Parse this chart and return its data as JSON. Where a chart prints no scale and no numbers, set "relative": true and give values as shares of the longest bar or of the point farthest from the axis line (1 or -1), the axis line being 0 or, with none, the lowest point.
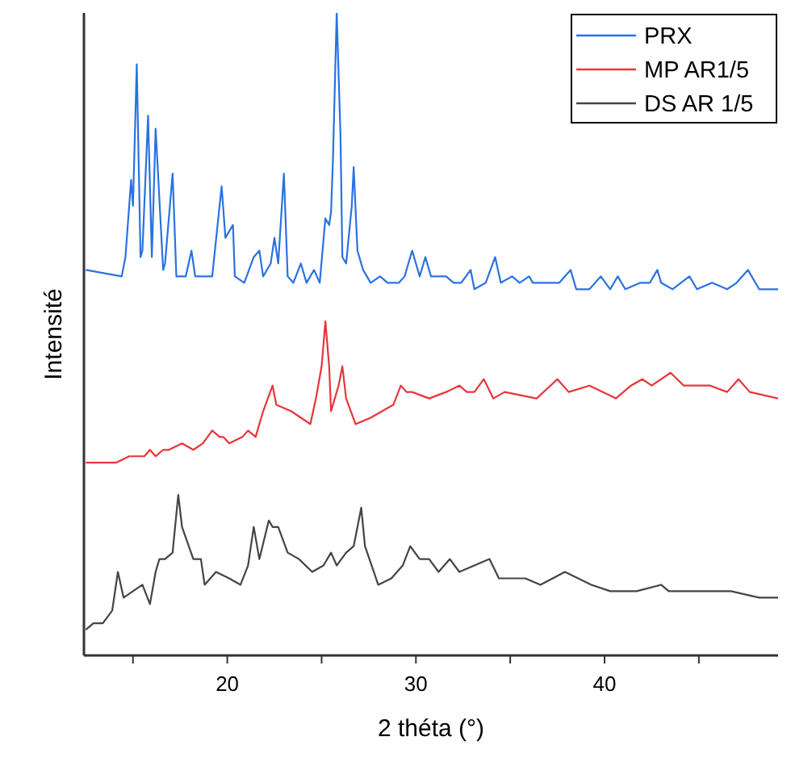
{
  "chart_data": {
    "type": "line",
    "relative": true,
    "xlabel": "2 théta (°)",
    "ylabel": "Intensité",
    "xlim": [
      12.4,
      49.2
    ],
    "xticks": [
      {
        "value": 15,
        "label": null
      },
      20,
      {
        "value": 25,
        "label": null
      },
      30,
      {
        "value": 35,
        "label": null
      },
      40,
      {
        "value": 45,
        "label": null
      }
    ],
    "grid": false,
    "legend": "top right",
    "marker": "none",
    "line_style": "solid",
    "series": [
      {
        "name": "PRX",
        "color": "#2a72e0",
        "x": [
          12.5,
          14.4,
          14.6,
          14.9,
          15.0,
          15.2,
          15.4,
          15.5,
          15.8,
          16.0,
          16.2,
          16.6,
          16.7,
          17.1,
          17.3,
          17.8,
          18.1,
          18.3,
          18.9,
          19.2,
          19.7,
          19.9,
          20.3,
          20.4,
          20.9,
          21.4,
          21.7,
          21.9,
          22.3,
          22.5,
          22.7,
          23.0,
          23.2,
          23.5,
          23.9,
          24.2,
          24.6,
          24.9,
          25.2,
          25.4,
          25.5,
          25.6,
          25.8,
          26.0,
          26.1,
          26.3,
          26.6,
          26.7,
          26.9,
          27.2,
          27.6,
          28.1,
          28.5,
          29.1,
          29.4,
          29.8,
          30.2,
          30.5,
          30.8,
          31.2,
          31.6,
          32.0,
          32.4,
          32.9,
          33.1,
          33.7,
          34.2,
          34.5,
          35.1,
          35.5,
          36.0,
          36.2,
          37.2,
          37.6,
          38.2,
          38.5,
          39.2,
          39.8,
          40.3,
          40.7,
          41.1,
          41.9,
          42.4,
          42.8,
          43.0,
          43.6,
          44.5,
          44.9,
          45.7,
          46.5,
          47.0,
          47.6,
          48.2,
          49.2
        ],
        "values": [
          0.6,
          0.59,
          0.62,
          0.74,
          0.7,
          0.92,
          0.62,
          0.63,
          0.84,
          0.62,
          0.82,
          0.6,
          0.61,
          0.75,
          0.59,
          0.59,
          0.63,
          0.59,
          0.59,
          0.59,
          0.73,
          0.65,
          0.67,
          0.59,
          0.58,
          0.62,
          0.63,
          0.59,
          0.61,
          0.65,
          0.61,
          0.75,
          0.59,
          0.58,
          0.61,
          0.58,
          0.6,
          0.58,
          0.68,
          0.67,
          0.69,
          0.77,
          1.0,
          0.81,
          0.62,
          0.61,
          0.7,
          0.76,
          0.63,
          0.6,
          0.58,
          0.59,
          0.58,
          0.58,
          0.59,
          0.63,
          0.59,
          0.62,
          0.59,
          0.59,
          0.59,
          0.58,
          0.58,
          0.6,
          0.57,
          0.58,
          0.62,
          0.58,
          0.59,
          0.58,
          0.59,
          0.58,
          0.58,
          0.58,
          0.6,
          0.57,
          0.57,
          0.59,
          0.57,
          0.59,
          0.57,
          0.58,
          0.58,
          0.6,
          0.58,
          0.57,
          0.59,
          0.57,
          0.58,
          0.57,
          0.58,
          0.6,
          0.57,
          0.57
        ]
      },
      {
        "name": "MP AR1/5",
        "color": "#e8353a",
        "x": [
          12.5,
          14.1,
          14.8,
          15.2,
          15.4,
          15.6,
          15.9,
          16.2,
          16.6,
          16.9,
          17.6,
          18.2,
          18.7,
          19.2,
          19.6,
          19.8,
          20.1,
          20.8,
          21.1,
          21.5,
          21.9,
          22.4,
          22.6,
          23.4,
          23.9,
          24.4,
          24.7,
          25.0,
          25.2,
          25.4,
          25.5,
          25.9,
          26.1,
          26.3,
          26.8,
          27.6,
          28.2,
          28.8,
          29.2,
          29.5,
          29.8,
          30.7,
          31.6,
          32.3,
          32.7,
          33.1,
          33.6,
          34.1,
          34.7,
          36.4,
          37.5,
          38.1,
          39.2,
          40.6,
          41.4,
          42.0,
          42.5,
          43.5,
          44.2,
          45.6,
          46.5,
          47.1,
          47.7,
          49.2
        ],
        "values": [
          0.3,
          0.3,
          0.31,
          0.31,
          0.31,
          0.31,
          0.32,
          0.31,
          0.32,
          0.32,
          0.33,
          0.32,
          0.33,
          0.35,
          0.34,
          0.34,
          0.33,
          0.34,
          0.35,
          0.34,
          0.38,
          0.42,
          0.39,
          0.38,
          0.37,
          0.36,
          0.4,
          0.45,
          0.52,
          0.45,
          0.38,
          0.42,
          0.45,
          0.4,
          0.36,
          0.37,
          0.38,
          0.39,
          0.42,
          0.41,
          0.41,
          0.4,
          0.41,
          0.42,
          0.41,
          0.41,
          0.43,
          0.4,
          0.41,
          0.4,
          0.43,
          0.41,
          0.42,
          0.4,
          0.42,
          0.43,
          0.42,
          0.44,
          0.42,
          0.42,
          0.41,
          0.43,
          0.41,
          0.4
        ]
      },
      {
        "name": "DS AR 1/5",
        "color": "#444444",
        "x": [
          12.5,
          12.9,
          13.4,
          13.9,
          14.2,
          14.5,
          15.0,
          15.5,
          15.9,
          16.2,
          16.4,
          16.7,
          17.1,
          17.4,
          17.6,
          18.2,
          18.6,
          18.8,
          19.4,
          20.1,
          20.7,
          21.1,
          21.4,
          21.7,
          22.2,
          22.4,
          22.7,
          23.2,
          23.8,
          24.5,
          25.1,
          25.5,
          25.8,
          26.3,
          26.7,
          27.1,
          27.3,
          28.0,
          28.7,
          29.3,
          29.7,
          30.2,
          30.7,
          31.2,
          31.8,
          32.3,
          33.9,
          34.4,
          35.1,
          35.8,
          36.6,
          37.9,
          39.3,
          40.3,
          41.1,
          41.7,
          43.0,
          43.4,
          45.0,
          45.9,
          46.7,
          48.2,
          49.2
        ],
        "values": [
          0.04,
          0.05,
          0.05,
          0.07,
          0.13,
          0.09,
          0.1,
          0.11,
          0.08,
          0.13,
          0.15,
          0.15,
          0.16,
          0.25,
          0.2,
          0.15,
          0.15,
          0.11,
          0.13,
          0.12,
          0.11,
          0.14,
          0.2,
          0.15,
          0.21,
          0.2,
          0.2,
          0.16,
          0.15,
          0.13,
          0.14,
          0.16,
          0.14,
          0.16,
          0.17,
          0.23,
          0.17,
          0.11,
          0.12,
          0.14,
          0.17,
          0.15,
          0.15,
          0.13,
          0.15,
          0.13,
          0.15,
          0.12,
          0.12,
          0.12,
          0.11,
          0.13,
          0.11,
          0.1,
          0.1,
          0.1,
          0.11,
          0.1,
          0.1,
          0.1,
          0.1,
          0.09,
          0.09
        ]
      }
    ]
  }
}
